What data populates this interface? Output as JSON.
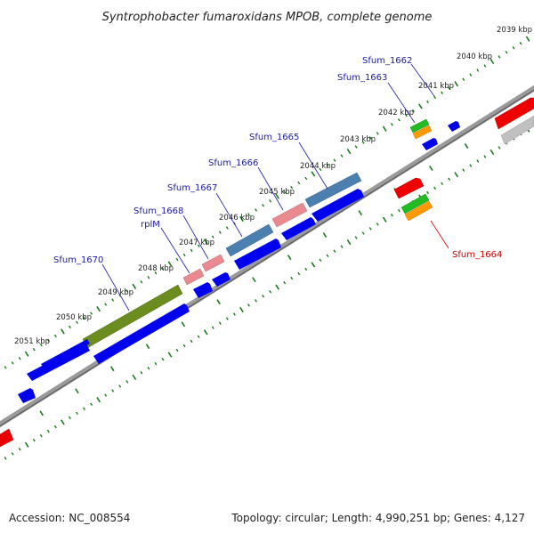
{
  "title": "Syntrophobacter fumaroxidans MPOB, complete genome",
  "footer": {
    "accession": "Accession: NC_008554",
    "stats": "Topology: circular; Length: 4,990,251 bp; Genes: 4,127"
  },
  "kbp_labels": [
    "2039 kbp",
    "2040 kbp",
    "2041 kbp",
    "2042 kbp",
    "2043 kbp",
    "2044 kbp",
    "2045 kbp",
    "2046 kbp",
    "2047 kbp",
    "2048 kbp",
    "2049 kbp",
    "2050 kbp",
    "2051 kbp"
  ],
  "gene_labels": [
    {
      "text": "Sfum_1662",
      "color": "#1a1aa0"
    },
    {
      "text": "Sfum_1663",
      "color": "#1a1aa0"
    },
    {
      "text": "Sfum_1664",
      "color": "#cc0000"
    },
    {
      "text": "Sfum_1665",
      "color": "#1a1aa0"
    },
    {
      "text": "Sfum_1666",
      "color": "#1a1aa0"
    },
    {
      "text": "Sfum_1667",
      "color": "#1a1aa0"
    },
    {
      "text": "Sfum_1668",
      "color": "#1a1aa0"
    },
    {
      "text": "rplM",
      "color": "#1a1aa0"
    },
    {
      "text": "Sfum_1670",
      "color": "#1a1aa0"
    }
  ],
  "colors": {
    "cds": "#0000ee",
    "gene_steelblue": "#4a7fb0",
    "gene_pink": "#e88a90",
    "gene_olive": "#6b8c1e",
    "gene_red": "#ee0000",
    "gene_green": "#22bb22",
    "gene_orange": "#ff9900",
    "gene_gray": "#c0c0c0",
    "backbone": "#808080",
    "ticks": "#1a7a1a"
  }
}
